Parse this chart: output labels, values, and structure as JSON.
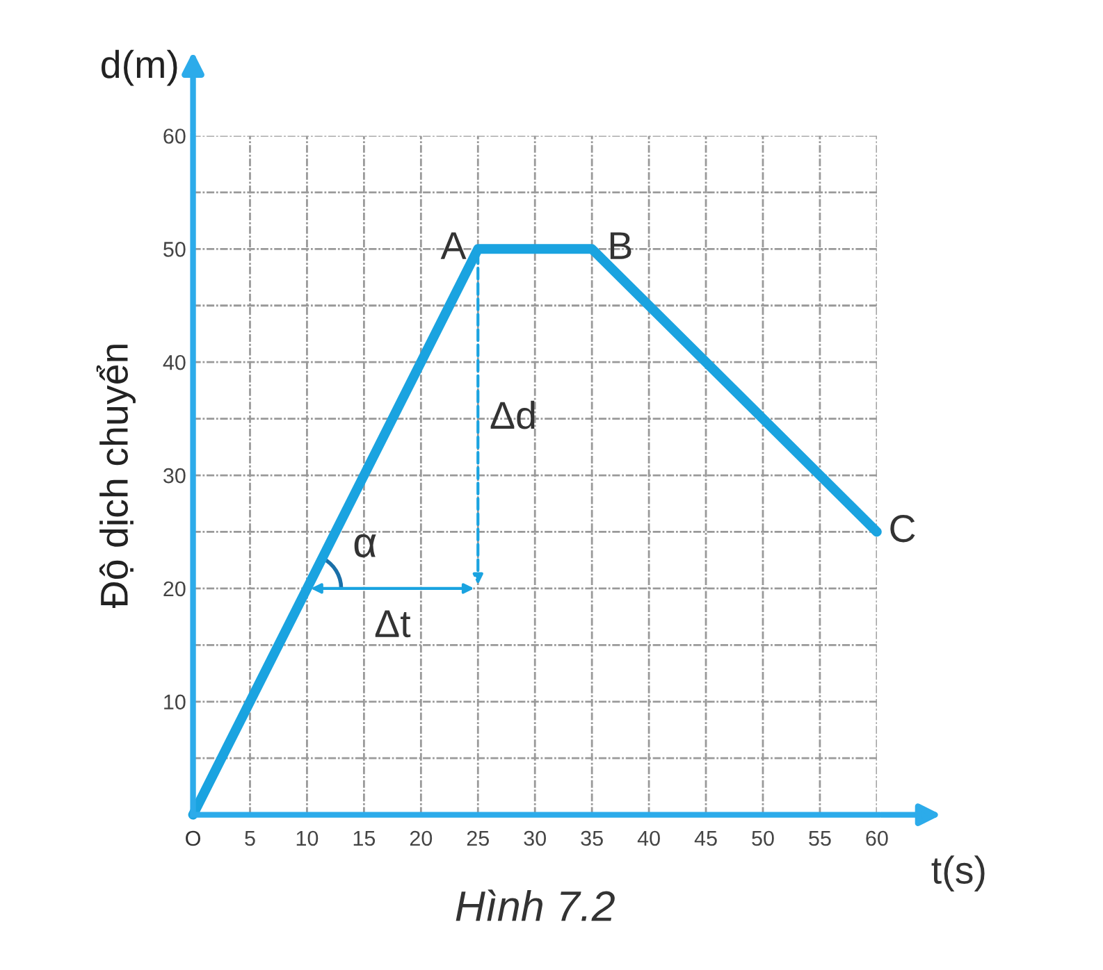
{
  "chart_data": {
    "type": "line",
    "xlabel": "t(s)",
    "ylabel": "Độ dịch chuyển",
    "x": [
      0,
      25,
      35,
      60
    ],
    "series": [
      {
        "color": "#1aa3e0",
        "values": [
          0,
          50,
          50,
          25
        ]
      }
    ],
    "xlim": [
      0,
      60
    ],
    "ylim": [
      0,
      60
    ],
    "xticks": [
      {
        "value": 0,
        "label": "O"
      },
      5,
      10,
      15,
      20,
      25,
      30,
      35,
      40,
      45,
      50,
      55,
      60
    ],
    "yticks": [
      {
        "value": 5,
        "label": null
      },
      10,
      {
        "value": 15,
        "label": null
      },
      20,
      {
        "value": 25,
        "label": null
      },
      30,
      {
        "value": 35,
        "label": null
      },
      40,
      {
        "value": 45,
        "label": null
      },
      50,
      {
        "value": 55,
        "label": null
      },
      60
    ],
    "grid": true,
    "marker": "none",
    "line_style": "solid",
    "legend": false,
    "annotations": [
      "d(m)",
      "Hình 7.2",
      {
        "text": "A",
        "x": 25,
        "y": 50
      },
      {
        "text": "B",
        "x": 35,
        "y": 50
      },
      {
        "text": "C",
        "x": 60,
        "y": 25
      },
      {
        "text": "α",
        "x": 10,
        "y": 20
      },
      "Δd",
      "Δt"
    ]
  }
}
